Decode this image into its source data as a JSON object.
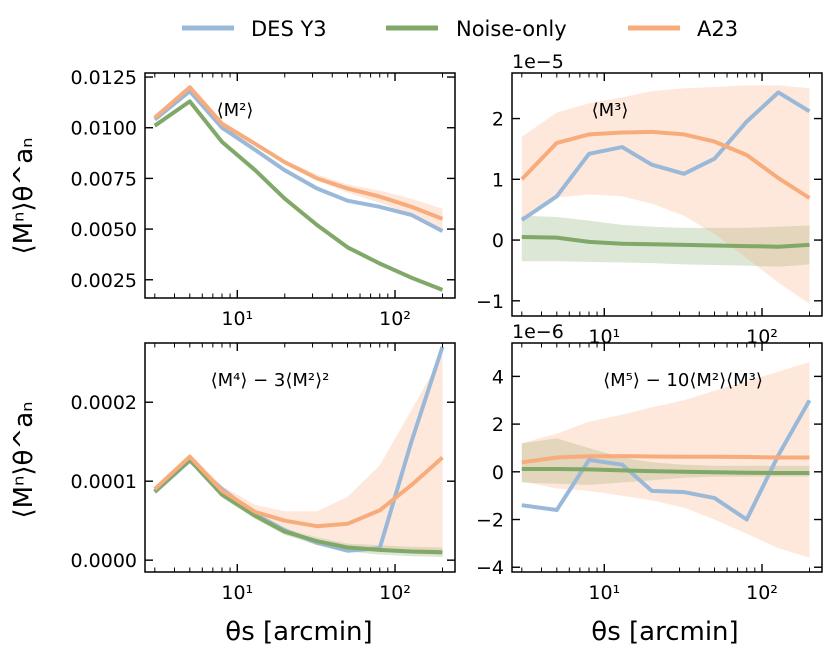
{
  "legend": [
    {
      "label": "DES Y3",
      "color": "#9ab9d8"
    },
    {
      "label": "Noise-only",
      "color": "#80a868"
    },
    {
      "label": "A23",
      "color": "#f8ac7c"
    }
  ],
  "theta": [
    3,
    5,
    8,
    13,
    20,
    32,
    50,
    80,
    127,
    200
  ],
  "xlabel": "θs [arcmin]",
  "ylabel": "⟨Mⁿ⟩θ^aₙ",
  "x_tick_labels": [
    "10¹",
    "10²"
  ],
  "chart_data": [
    {
      "type": "line",
      "panel": "top-left",
      "title": "⟨M²⟩",
      "xscale": "log",
      "xlim": [
        2.6,
        240
      ],
      "ylim": [
        0.0016,
        0.0127
      ],
      "offset_text": "",
      "yticks": [
        0.0025,
        0.005,
        0.0075,
        0.01,
        0.0125
      ],
      "ytick_labels": [
        "0.0025",
        "0.0050",
        "0.0075",
        "0.0100",
        "0.0125"
      ],
      "series": [
        {
          "name": "DES Y3",
          "color": "#9ab9d8",
          "values": [
            0.0104,
            0.0118,
            0.01,
            0.0089,
            0.0079,
            0.007,
            0.0064,
            0.0061,
            0.0057,
            0.0049
          ]
        },
        {
          "name": "Noise-only",
          "color": "#80a868",
          "values": [
            0.0101,
            0.0113,
            0.0093,
            0.0079,
            0.0065,
            0.0052,
            0.0041,
            0.0033,
            0.0026,
            0.002
          ],
          "lower": [
            0.01,
            0.0112,
            0.0092,
            0.0078,
            0.0064,
            0.0051,
            0.004,
            0.0032,
            0.0025,
            0.0019
          ],
          "upper": [
            0.0102,
            0.0114,
            0.0094,
            0.008,
            0.0066,
            0.0053,
            0.0042,
            0.0034,
            0.0027,
            0.0021
          ]
        },
        {
          "name": "A23",
          "color": "#f8ac7c",
          "values": [
            0.0105,
            0.012,
            0.0102,
            0.0092,
            0.0083,
            0.0075,
            0.007,
            0.0066,
            0.0061,
            0.0055
          ],
          "lower": [
            0.0104,
            0.0119,
            0.0101,
            0.0091,
            0.0082,
            0.0074,
            0.0068,
            0.0063,
            0.0057,
            0.005
          ],
          "upper": [
            0.0106,
            0.0121,
            0.0103,
            0.0093,
            0.0084,
            0.0077,
            0.0072,
            0.0069,
            0.0065,
            0.006
          ]
        }
      ]
    },
    {
      "type": "line",
      "panel": "top-right",
      "title": "⟨M³⟩",
      "xscale": "log",
      "xlim": [
        2.6,
        240
      ],
      "ylim": [
        -1.25,
        2.75
      ],
      "offset_text": "1e−5",
      "yticks": [
        -1,
        0,
        1,
        2
      ],
      "ytick_labels": [
        "−1",
        "0",
        "1",
        "2"
      ],
      "series": [
        {
          "name": "DES Y3",
          "color": "#9ab9d8",
          "values": [
            0.33,
            0.72,
            1.42,
            1.53,
            1.24,
            1.09,
            1.34,
            1.95,
            2.43,
            2.12
          ]
        },
        {
          "name": "Noise-only",
          "color": "#80a868",
          "values": [
            0.05,
            0.04,
            -0.03,
            -0.06,
            -0.07,
            -0.08,
            -0.09,
            -0.1,
            -0.11,
            -0.08
          ],
          "lower": [
            -0.35,
            -0.35,
            -0.36,
            -0.37,
            -0.38,
            -0.4,
            -0.41,
            -0.42,
            -0.44,
            -0.4
          ],
          "upper": [
            0.4,
            0.38,
            0.32,
            0.25,
            0.22,
            0.2,
            0.2,
            0.2,
            0.22,
            0.24
          ]
        },
        {
          "name": "A23",
          "color": "#f8ac7c",
          "values": [
            1.0,
            1.6,
            1.74,
            1.77,
            1.78,
            1.74,
            1.62,
            1.4,
            1.02,
            0.69
          ],
          "lower": [
            0.3,
            0.7,
            0.75,
            0.72,
            0.6,
            0.4,
            0.1,
            -0.3,
            -0.7,
            -1.05
          ],
          "upper": [
            1.7,
            2.1,
            2.25,
            2.35,
            2.45,
            2.5,
            2.52,
            2.55,
            2.55,
            2.5
          ]
        }
      ]
    },
    {
      "type": "line",
      "panel": "bottom-left",
      "title": "⟨M⁴⟩ − 3⟨M²⟩²",
      "xscale": "log",
      "xlim": [
        2.6,
        240
      ],
      "ylim": [
        -1.5e-05,
        0.000275
      ],
      "offset_text": "",
      "yticks": [
        0,
        0.0001,
        0.0002
      ],
      "ytick_labels": [
        "0.0000",
        "0.0001",
        "0.0002"
      ],
      "series": [
        {
          "name": "DES Y3",
          "color": "#9ab9d8",
          "values": [
            8.6e-05,
            0.000126,
            9e-05,
            5.8e-05,
            3.8e-05,
            2.2e-05,
            1.2e-05,
            1.5e-05,
            0.00015,
            0.00027
          ]
        },
        {
          "name": "Noise-only",
          "color": "#80a868",
          "values": [
            8.7e-05,
            0.000127,
            8.3e-05,
            5.6e-05,
            3.6e-05,
            2.4e-05,
            1.6e-05,
            1.3e-05,
            1.1e-05,
            1e-05
          ],
          "lower": [
            8.4e-05,
            0.000124,
            7.9e-05,
            5.2e-05,
            3.2e-05,
            1.9e-05,
            1.1e-05,
            7e-06,
            5e-06,
            4e-06
          ],
          "upper": [
            9e-05,
            0.00013,
            8.7e-05,
            6e-05,
            4e-05,
            2.9e-05,
            2.1e-05,
            1.9e-05,
            1.7e-05,
            1.6e-05
          ]
        },
        {
          "name": "A23",
          "color": "#f8ac7c",
          "values": [
            9e-05,
            0.000131,
            8.8e-05,
            6.1e-05,
            5e-05,
            4.3e-05,
            4.6e-05,
            6.3e-05,
            9.5e-05,
            0.00013
          ],
          "lower": [
            8.7e-05,
            0.000127,
            8.2e-05,
            5.4e-05,
            4e-05,
            2.8e-05,
            1.8e-05,
            1.2e-05,
            8e-06,
            6e-06
          ],
          "upper": [
            9.3e-05,
            0.000135,
            9.4e-05,
            7e-05,
            6.2e-05,
            6.2e-05,
            8e-05,
            0.00012,
            0.00019,
            0.00026
          ]
        }
      ]
    },
    {
      "type": "line",
      "panel": "bottom-right",
      "title": "⟨M⁵⟩ − 10⟨M²⟩⟨M³⟩",
      "xscale": "log",
      "xlim": [
        2.6,
        240
      ],
      "ylim": [
        -4.2,
        5.4
      ],
      "offset_text": "1e−6",
      "yticks": [
        -4,
        -2,
        0,
        2,
        4
      ],
      "ytick_labels": [
        "−4",
        "−2",
        "0",
        "2",
        "4"
      ],
      "series": [
        {
          "name": "DES Y3",
          "color": "#9ab9d8",
          "values": [
            -1.4,
            -1.6,
            0.5,
            0.3,
            -0.8,
            -0.85,
            -1.1,
            -2.0,
            0.7,
            3.0
          ]
        },
        {
          "name": "Noise-only",
          "color": "#80a868",
          "values": [
            0.12,
            0.12,
            0.1,
            0.06,
            0.03,
            0.0,
            -0.02,
            -0.04,
            -0.05,
            -0.05
          ],
          "lower": [
            -0.45,
            -0.5,
            -0.55,
            -0.45,
            -0.35,
            -0.25,
            -0.2,
            -0.2,
            -0.2,
            -0.2
          ],
          "upper": [
            1.2,
            1.4,
            1.0,
            0.6,
            0.4,
            0.3,
            0.25,
            0.25,
            0.25,
            0.25
          ]
        },
        {
          "name": "A23",
          "color": "#f8ac7c",
          "values": [
            0.4,
            0.6,
            0.65,
            0.66,
            0.64,
            0.63,
            0.63,
            0.62,
            0.6,
            0.6
          ],
          "lower": [
            -0.4,
            -0.7,
            -0.8,
            -1.0,
            -1.2,
            -1.5,
            -2.0,
            -2.6,
            -3.2,
            -3.6
          ],
          "upper": [
            1.2,
            1.6,
            2.1,
            2.4,
            2.7,
            3.0,
            3.4,
            3.8,
            4.2,
            4.6
          ]
        }
      ]
    }
  ]
}
